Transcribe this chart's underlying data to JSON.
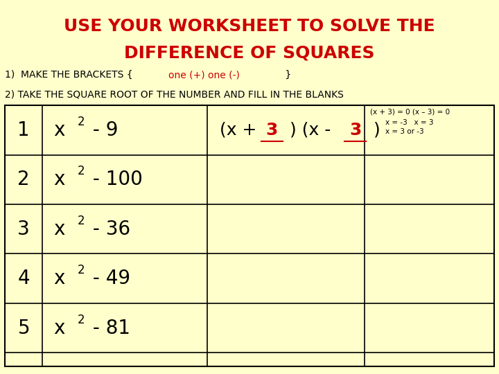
{
  "bg_color": "#ffffcc",
  "title_line1": "USE YOUR WORKSHEET TO SOLVE THE",
  "title_line2": "DIFFERENCE OF SQUARES",
  "title_color": "#cc0000",
  "title_fontsize": 18,
  "step1_pre": "1)  MAKE THE BRACKETS { ",
  "step1_red": "one (+) one (-)",
  "step1_post": " }",
  "step2": "2) TAKE THE SQUARE ROOT OF THE NUMBER AND FILL IN THE BLANKS",
  "red_color": "#cc0000",
  "black_color": "#000000",
  "row_labels": [
    "1",
    "2",
    "3",
    "4",
    "5"
  ],
  "expr_suffixes": [
    " - 9",
    " - 100",
    " - 36",
    " - 49",
    " - 81"
  ],
  "right_line1": "(x + 3) = 0 (x – 3) = 0",
  "right_line2": "x = -3   x = 3",
  "right_line3": "x = 3 or -3"
}
